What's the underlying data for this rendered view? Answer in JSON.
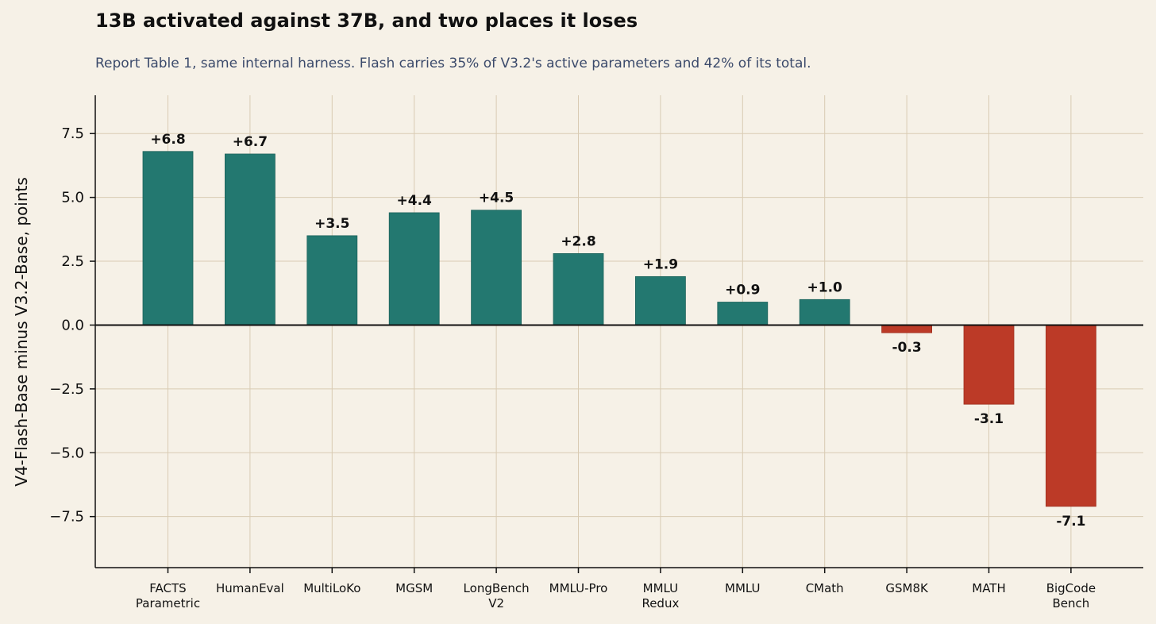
{
  "chart_data": {
    "type": "bar",
    "title": "13B activated against 37B, and two places it loses",
    "subtitle": "Report Table 1, same internal harness. Flash carries 35% of V3.2's active parameters and 42% of its total.",
    "ylabel": "V4-Flash-Base minus V3.2-Base, points",
    "xlabel": "",
    "categories": [
      [
        "FACTS",
        "Parametric"
      ],
      [
        "HumanEval"
      ],
      [
        "MultiLoKo"
      ],
      [
        "MGSM"
      ],
      [
        "LongBench",
        "V2"
      ],
      [
        "MMLU-Pro"
      ],
      [
        "MMLU",
        "Redux"
      ],
      [
        "MMLU"
      ],
      [
        "CMath"
      ],
      [
        "GSM8K"
      ],
      [
        "MATH"
      ],
      [
        "BigCode",
        "Bench"
      ]
    ],
    "values": [
      6.8,
      6.7,
      3.5,
      4.4,
      4.5,
      2.8,
      1.9,
      0.9,
      1.0,
      -0.3,
      -3.1,
      -7.1
    ],
    "value_labels": [
      "+6.8",
      "+6.7",
      "+3.5",
      "+4.4",
      "+4.5",
      "+2.8",
      "+1.9",
      "+0.9",
      "+1.0",
      "-0.3",
      "-3.1",
      "-7.1"
    ],
    "ylim": [
      -9.5,
      9.0
    ],
    "yticks": [
      7.5,
      5.0,
      2.5,
      0.0,
      -2.5,
      -5.0,
      -7.5
    ],
    "ytick_labels": [
      "7.5",
      "5.0",
      "2.5",
      "0.0",
      "−2.5",
      "−5.0",
      "−7.5"
    ],
    "grid": true,
    "colors": {
      "positive": "#237870",
      "negative": "#bc3a27",
      "grid": "#d9cbb3",
      "background": "#f6f1e7",
      "axis": "#111111"
    }
  }
}
